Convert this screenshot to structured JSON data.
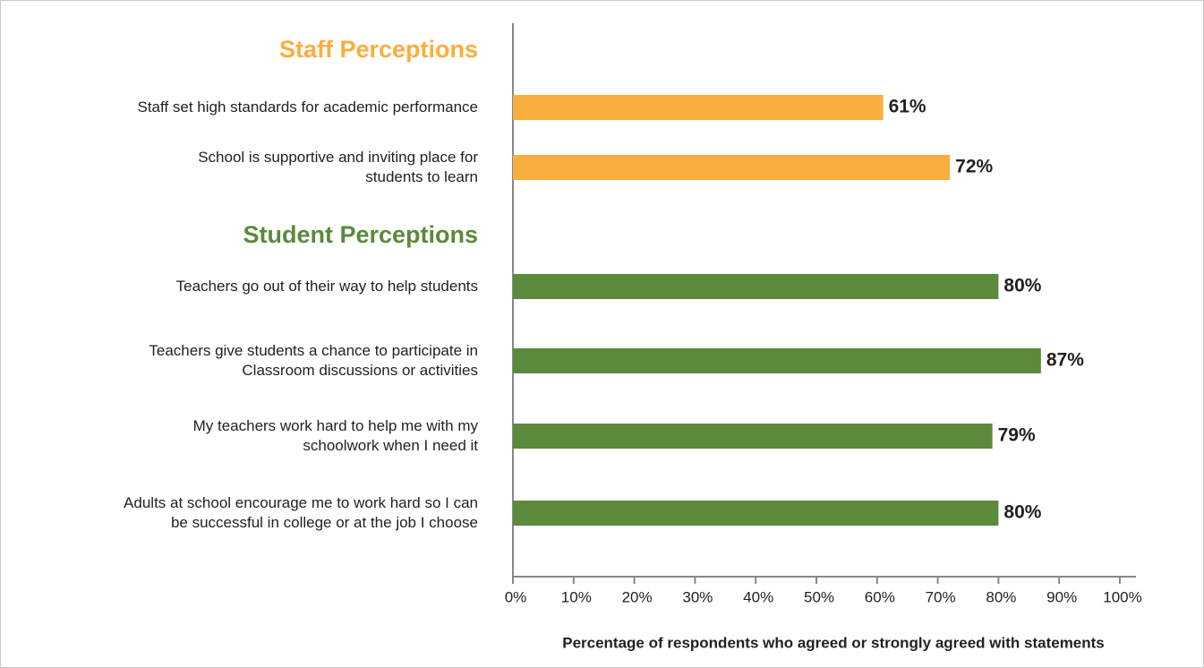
{
  "chart_data": {
    "type": "bar",
    "orientation": "horizontal",
    "groups": [
      {
        "name": "Staff Perceptions",
        "color": "#f9ae3e",
        "categories": [
          "Staff set high standards for academic performance",
          "School is supportive and inviting place for\nstudents to learn"
        ],
        "values": [
          61,
          72
        ],
        "value_labels": [
          "61%",
          "72%"
        ]
      },
      {
        "name": "Student Perceptions",
        "color": "#5b8a3c",
        "categories": [
          "Teachers go out of their way to help students",
          "Teachers give students a chance to participate in\nClassroom discussions or activities",
          "My teachers work hard to help me with my\nschoolwork when I need it",
          "Adults at school encourage me to work hard so I can\nbe successful in college or at the job I choose"
        ],
        "values": [
          80,
          87,
          79,
          80
        ],
        "value_labels": [
          "80%",
          "87%",
          "79%",
          "80%"
        ]
      }
    ],
    "xlabel": "Percentage of respondents who agreed or strongly agreed with statements",
    "xlim": [
      0,
      100
    ],
    "xticks": [
      {
        "value": 0,
        "label": "0%"
      },
      {
        "value": 10,
        "label": "10%"
      },
      {
        "value": 20,
        "label": "20%"
      },
      {
        "value": 30,
        "label": "30%"
      },
      {
        "value": 40,
        "label": "40%"
      },
      {
        "value": 50,
        "label": "50%"
      },
      {
        "value": 60,
        "label": "60%"
      },
      {
        "value": 70,
        "label": "70%"
      },
      {
        "value": 80,
        "label": "80%"
      },
      {
        "value": 90,
        "label": "90%"
      },
      {
        "value": 100,
        "label": "100%"
      }
    ]
  }
}
